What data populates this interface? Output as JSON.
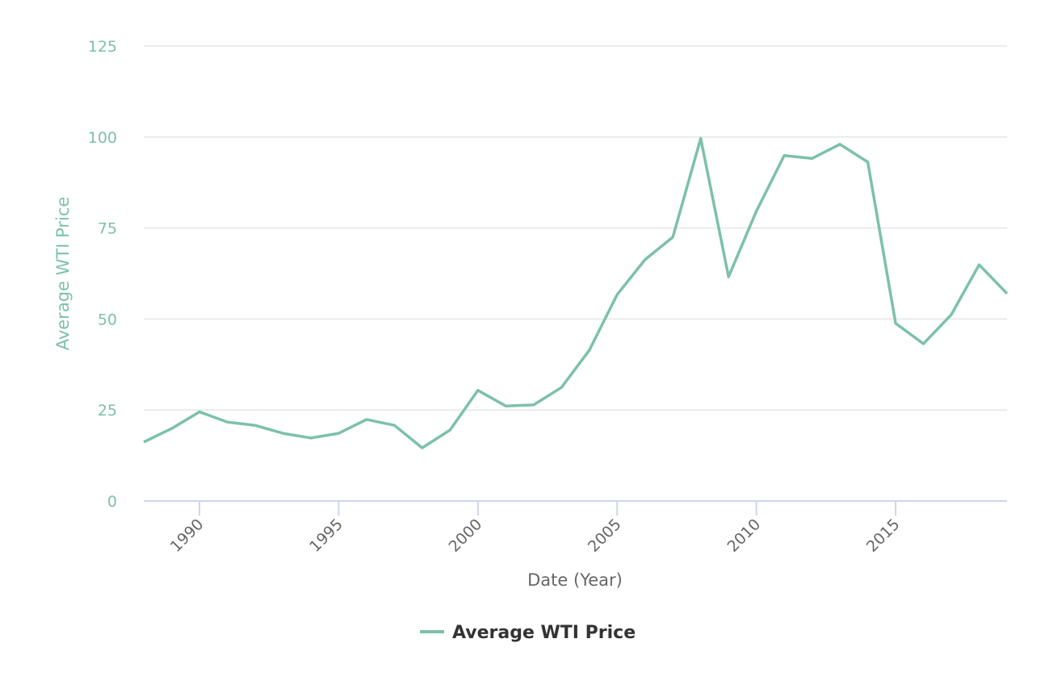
{
  "chart_data": {
    "type": "line",
    "title": "",
    "xlabel": "Date (Year)",
    "ylabel": "Average WTI Price",
    "xlim": [
      1988,
      2019
    ],
    "ylim": [
      0,
      125
    ],
    "yticks": [
      0,
      25,
      50,
      75,
      100,
      125
    ],
    "xticks": [
      1990,
      1995,
      2000,
      2005,
      2010,
      2015
    ],
    "grid": true,
    "legend_position": "bottom-center",
    "colors": {
      "line": "#7cc1a8",
      "grid": "#e6e6e6",
      "axis": "#ccd6eb"
    },
    "x": [
      1988,
      1989,
      1990,
      1991,
      1992,
      1993,
      1994,
      1995,
      1996,
      1997,
      1998,
      1999,
      2000,
      2001,
      2002,
      2003,
      2004,
      2005,
      2006,
      2007,
      2008,
      2009,
      2010,
      2011,
      2012,
      2013,
      2014,
      2015,
      2016,
      2017,
      2018,
      2019
    ],
    "series": [
      {
        "name": "Average WTI Price",
        "values": [
          16.2,
          19.9,
          24.5,
          21.7,
          20.8,
          18.6,
          17.3,
          18.6,
          22.4,
          20.8,
          14.6,
          19.5,
          30.4,
          26.1,
          26.4,
          31.2,
          41.4,
          56.7,
          66.3,
          72.5,
          99.6,
          61.6,
          79.6,
          94.9,
          94.1,
          98.0,
          93.1,
          48.8,
          43.2,
          51.2,
          64.9,
          57.0
        ]
      }
    ]
  }
}
